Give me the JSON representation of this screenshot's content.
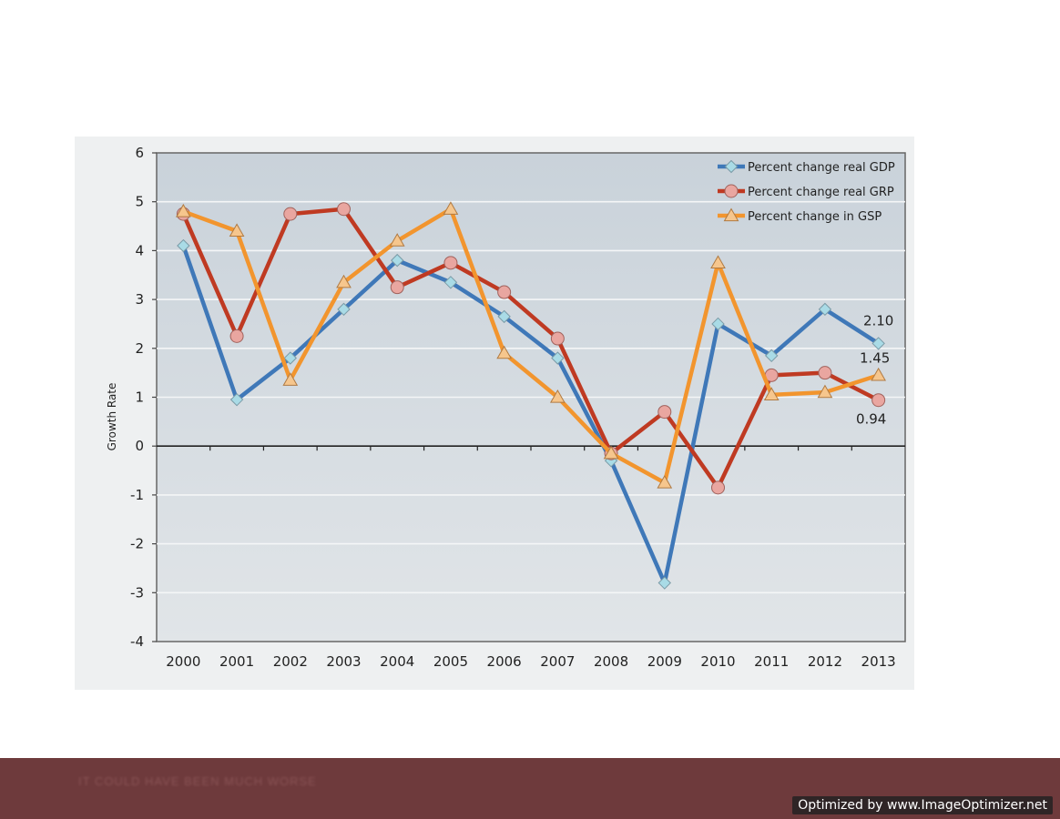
{
  "chart_data": {
    "type": "line",
    "title": "",
    "xlabel": "",
    "ylabel": "Growth Rate",
    "ylim": [
      -4,
      6
    ],
    "yticks": [
      6,
      5,
      4,
      3,
      2,
      1,
      0,
      -1,
      -2,
      -3,
      -4
    ],
    "x": [
      "2000",
      "2001",
      "2002",
      "2003",
      "2004",
      "2005",
      "2006",
      "2007",
      "2008",
      "2009",
      "2010",
      "2011",
      "2012",
      "2013"
    ],
    "grid": true,
    "legend_position": "top-right",
    "series": [
      {
        "name": "Percent change real GDP",
        "color": "#3f78b8",
        "marker": "diamond",
        "values": [
          4.1,
          0.95,
          1.8,
          2.8,
          3.8,
          3.35,
          2.65,
          1.8,
          -0.3,
          -2.8,
          2.5,
          1.85,
          2.8,
          2.1
        ]
      },
      {
        "name": "Percent change real GRP",
        "color": "#bf3a22",
        "marker": "circle",
        "values": [
          4.75,
          2.25,
          4.75,
          4.85,
          3.25,
          3.75,
          3.15,
          2.2,
          -0.15,
          0.7,
          -0.85,
          1.45,
          1.5,
          0.94
        ]
      },
      {
        "name": "Percent change in GSP",
        "color": "#f2952e",
        "marker": "triangle",
        "values": [
          4.8,
          4.4,
          1.35,
          3.35,
          4.2,
          4.85,
          1.9,
          1.0,
          -0.15,
          -0.75,
          3.75,
          1.05,
          1.1,
          1.45
        ]
      }
    ],
    "annotations": [
      {
        "text": "2.10",
        "series": 0,
        "index": 13
      },
      {
        "text": "1.45",
        "series": 2,
        "index": 13
      },
      {
        "text": "0.94",
        "series": 1,
        "index": 13
      }
    ]
  },
  "footer": {
    "caption": "IT COULD HAVE BEEN MUCH WORSE",
    "badge": "Optimized by www.ImageOptimizer.net"
  }
}
